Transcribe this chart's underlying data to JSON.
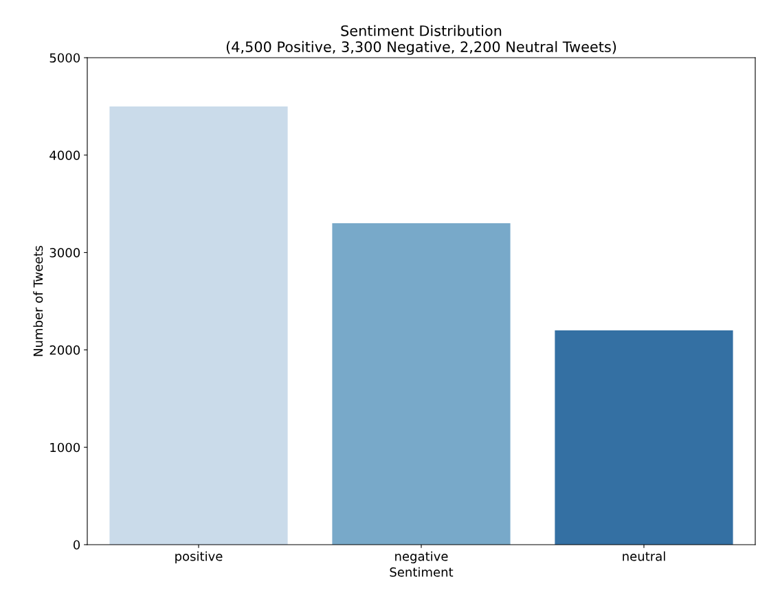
{
  "chart_data": {
    "type": "bar",
    "title": "Sentiment Distribution\n(4,500 Positive, 3,300 Negative, 2,200 Neutral Tweets)",
    "xlabel": "Sentiment",
    "ylabel": "Number of Tweets",
    "categories": [
      "positive",
      "negative",
      "neutral"
    ],
    "values": [
      4500,
      3300,
      2200
    ],
    "colors": [
      "#cadbea",
      "#78a9c9",
      "#3470a3"
    ],
    "ylim": [
      0,
      5000
    ],
    "yticks": [
      0,
      1000,
      2000,
      3000,
      4000,
      5000
    ],
    "grid": false,
    "legend": false
  }
}
